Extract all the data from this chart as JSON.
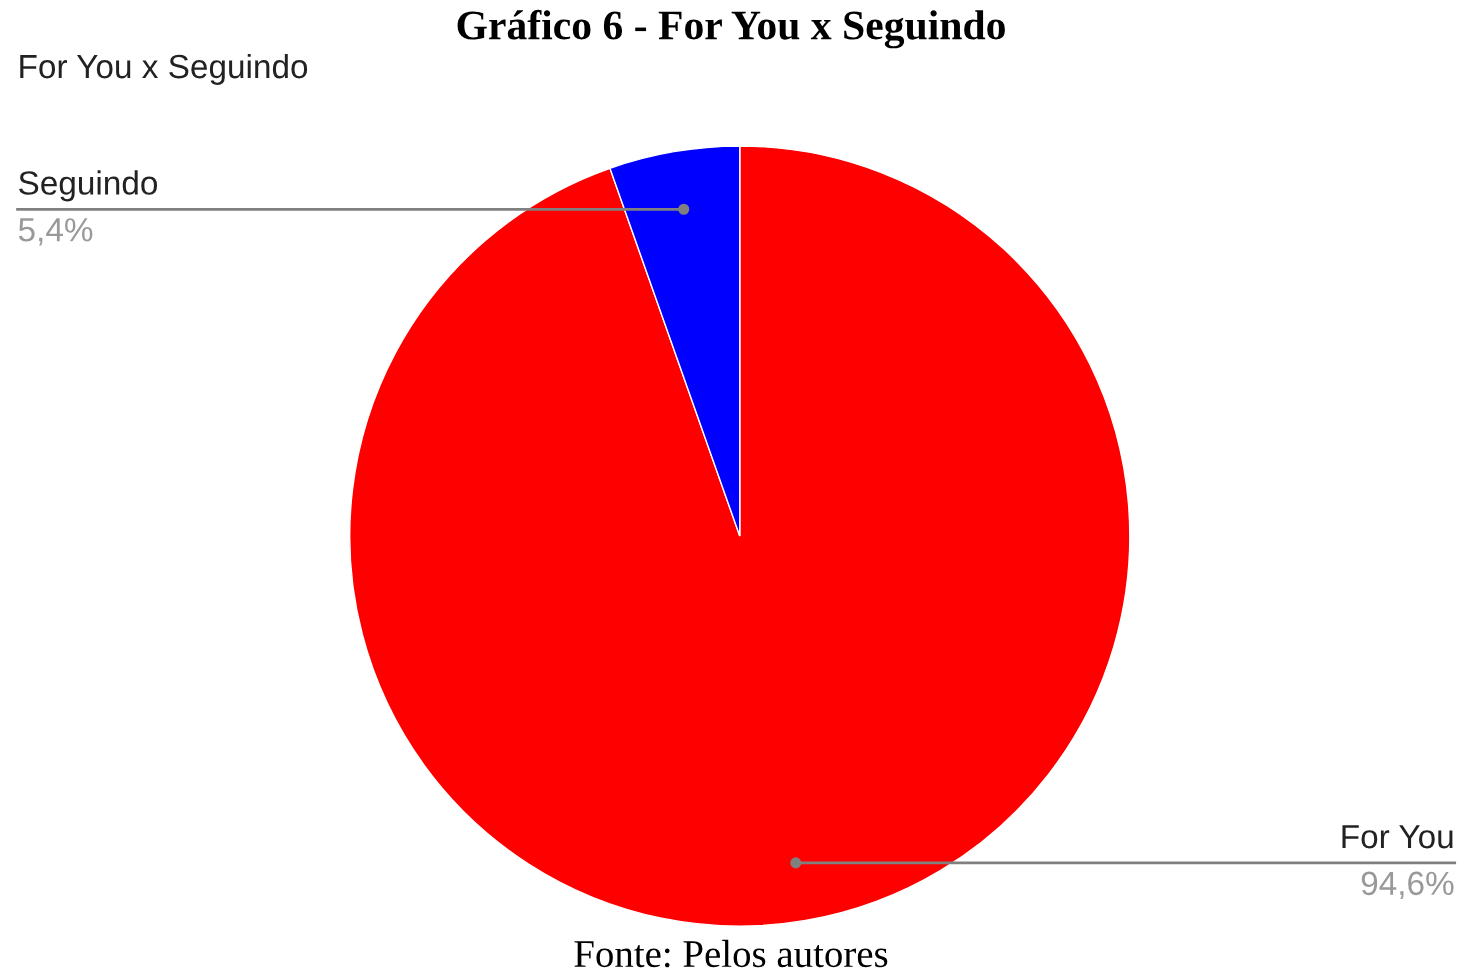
{
  "chart_data": {
    "type": "pie",
    "title": "Gráfico 6 - For You x Seguindo",
    "subtitle": "For You x Seguindo",
    "categories": [
      "For You",
      "Seguindo"
    ],
    "values": [
      94.6,
      5.4
    ],
    "colors": [
      "#ff0000",
      "#0000ff"
    ],
    "value_labels": [
      "94,6%",
      "5,4%"
    ],
    "annotations": [
      "Fonte: Pelos autores"
    ]
  }
}
